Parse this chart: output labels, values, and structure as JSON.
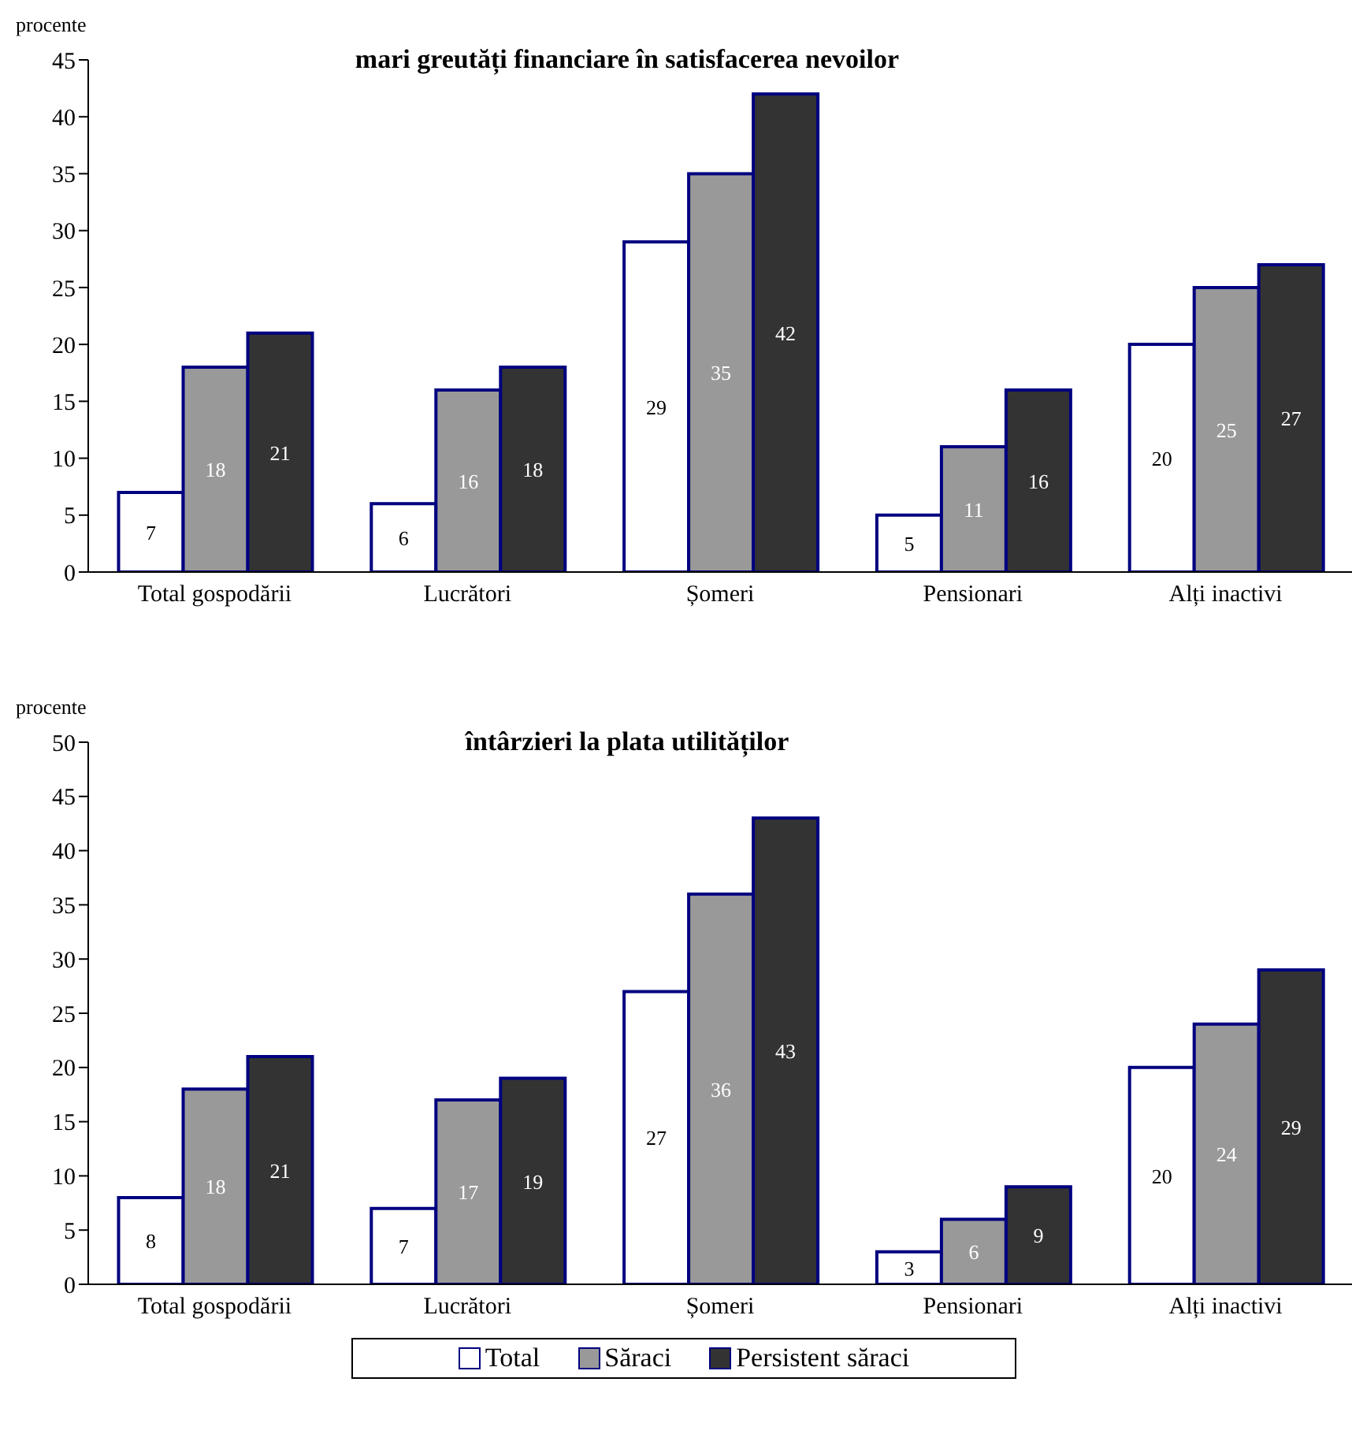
{
  "chart_data": [
    {
      "type": "bar",
      "title": "mari greutăți financiare în satisfacerea nevoilor",
      "ylabel": "procente",
      "categories": [
        "Total gospodării",
        "Lucrători",
        "Șomeri",
        "Pensionari",
        "Alți inactivi"
      ],
      "series": [
        {
          "color": "#ffffff",
          "values": [
            7,
            6,
            29,
            5,
            20
          ]
        },
        {
          "color": "#999999",
          "values": [
            18,
            16,
            35,
            11,
            25
          ]
        },
        {
          "color": "#333333",
          "values": [
            21,
            18,
            42,
            16,
            27
          ]
        }
      ],
      "ylim": [
        0,
        45
      ],
      "yticks": [
        0,
        5,
        10,
        15,
        20,
        25,
        30,
        35,
        40,
        45
      ],
      "grid": false,
      "legend": false,
      "data_labels": true
    },
    {
      "type": "bar",
      "title": "întârzieri la plata utilităților",
      "ylabel": "procente",
      "categories": [
        "Total gospodării",
        "Lucrători",
        "Șomeri",
        "Pensionari",
        "Alți inactivi"
      ],
      "series": [
        {
          "name": "Total",
          "color": "#ffffff",
          "values": [
            8,
            7,
            27,
            3,
            20
          ]
        },
        {
          "name": "Săraci",
          "color": "#999999",
          "values": [
            18,
            17,
            36,
            6,
            24
          ]
        },
        {
          "name": "Persistent săraci",
          "color": "#333333",
          "values": [
            21,
            19,
            43,
            9,
            29
          ]
        }
      ],
      "ylim": [
        0,
        50
      ],
      "yticks": [
        0,
        5,
        10,
        15,
        20,
        25,
        30,
        35,
        40,
        45,
        50
      ],
      "grid": false,
      "legend": "bottom",
      "data_labels": true
    }
  ]
}
